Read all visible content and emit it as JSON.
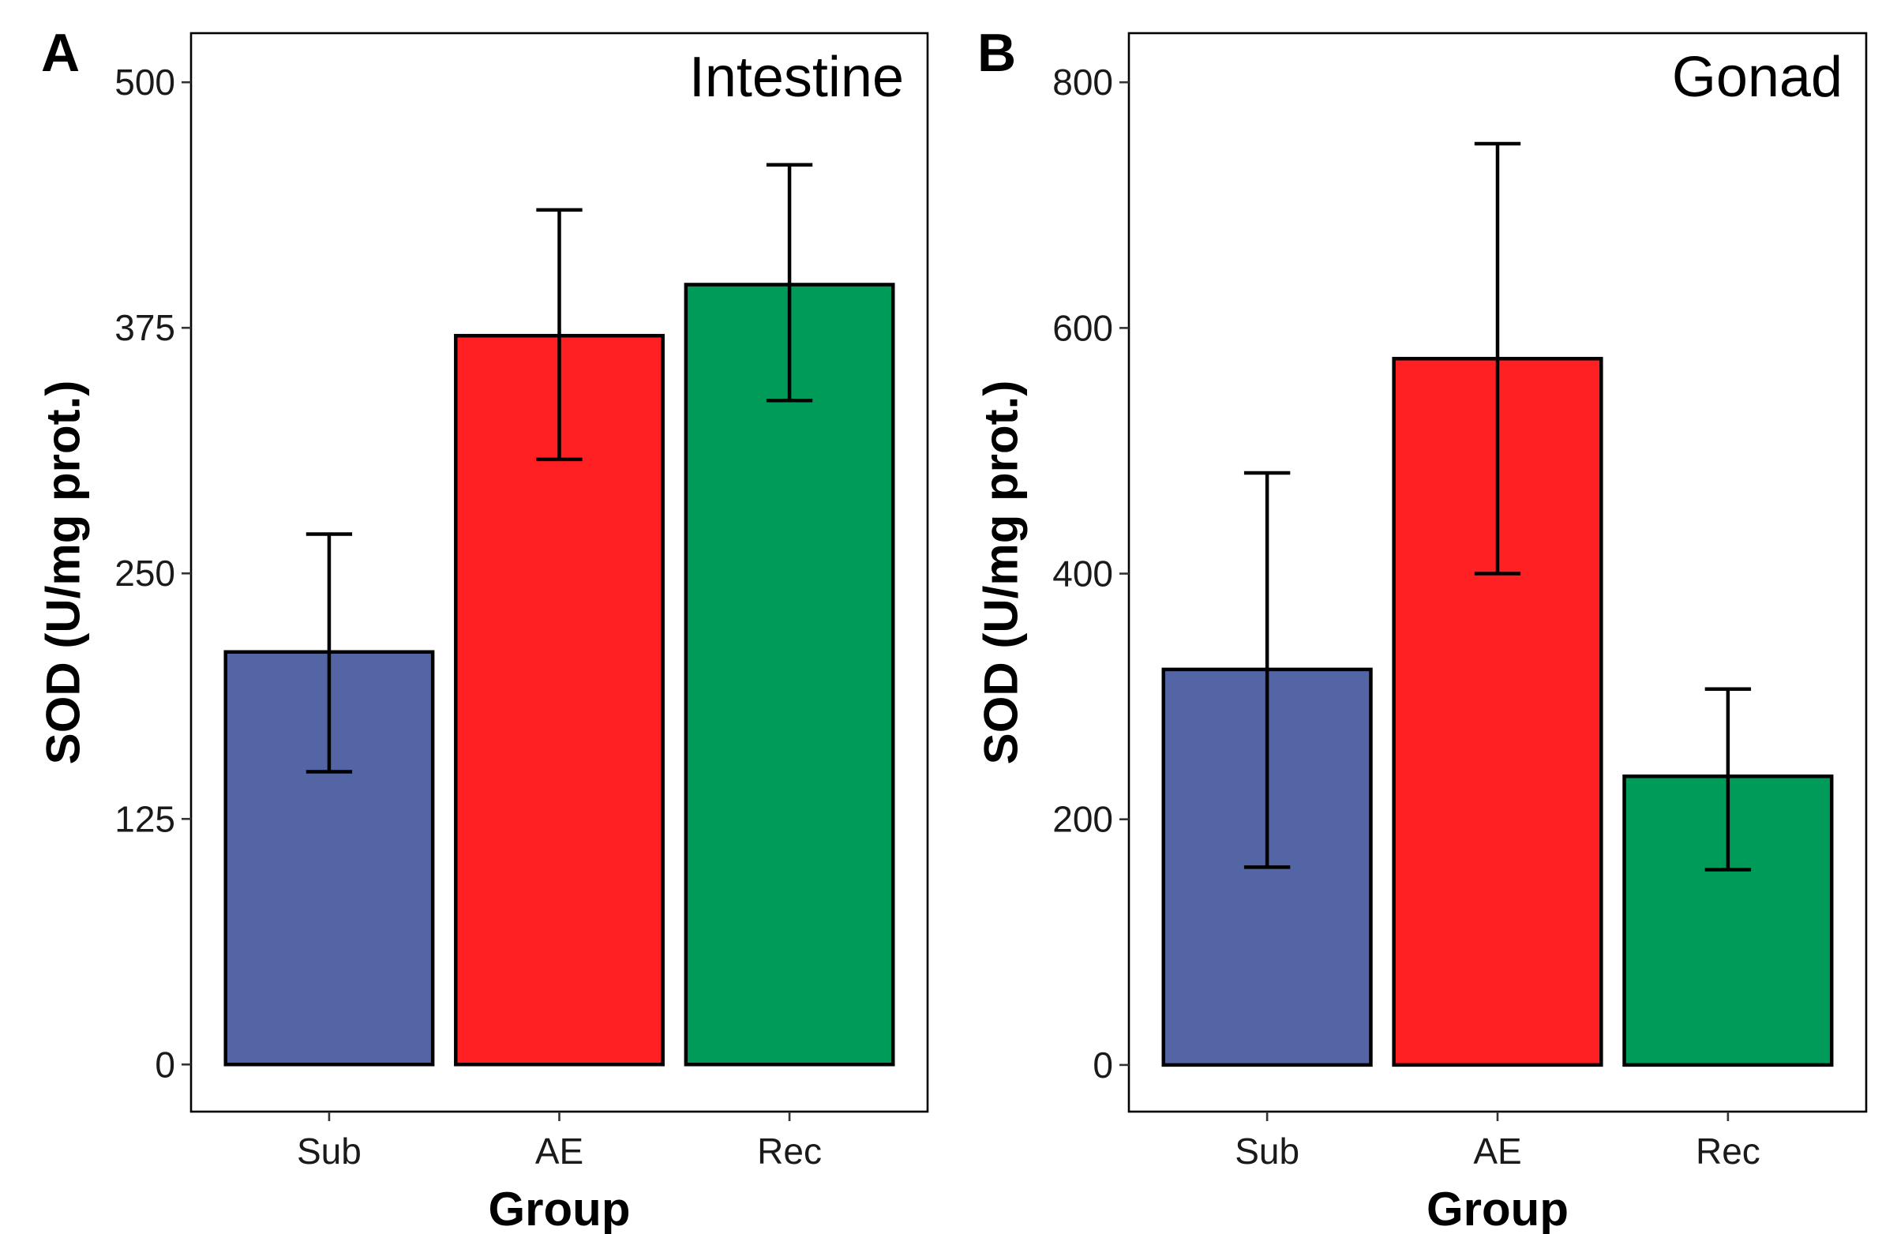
{
  "chart_data": [
    {
      "type": "bar",
      "panel_label": "A",
      "title": "Intestine",
      "xlabel": "Group",
      "ylabel": "SOD (U/mg prot.)",
      "categories": [
        "Sub",
        "AE",
        "Rec"
      ],
      "values": [
        210,
        371,
        397
      ],
      "error_low": [
        149,
        308,
        338
      ],
      "error_high": [
        270,
        435,
        458
      ],
      "colors": [
        "#5465a6",
        "#ff2024",
        "#009b58"
      ],
      "ylim": [
        -24,
        525
      ],
      "yticks": [
        0,
        125,
        250,
        375,
        500
      ],
      "ytick_labels": [
        "0",
        "125",
        "250",
        "375",
        "500"
      ],
      "grid": false
    },
    {
      "type": "bar",
      "panel_label": "B",
      "title": "Gonad",
      "xlabel": "Group",
      "ylabel": "SOD (U/mg prot.)",
      "categories": [
        "Sub",
        "AE",
        "Rec"
      ],
      "values": [
        322,
        575,
        235
      ],
      "error_low": [
        161,
        400,
        159
      ],
      "error_high": [
        482,
        750,
        306
      ],
      "colors": [
        "#5465a6",
        "#ff2024",
        "#009b58"
      ],
      "ylim": [
        -38,
        840
      ],
      "yticks": [
        0,
        200,
        400,
        600,
        800
      ],
      "ytick_labels": [
        "0",
        "200",
        "400",
        "600",
        "800"
      ],
      "grid": false
    }
  ]
}
